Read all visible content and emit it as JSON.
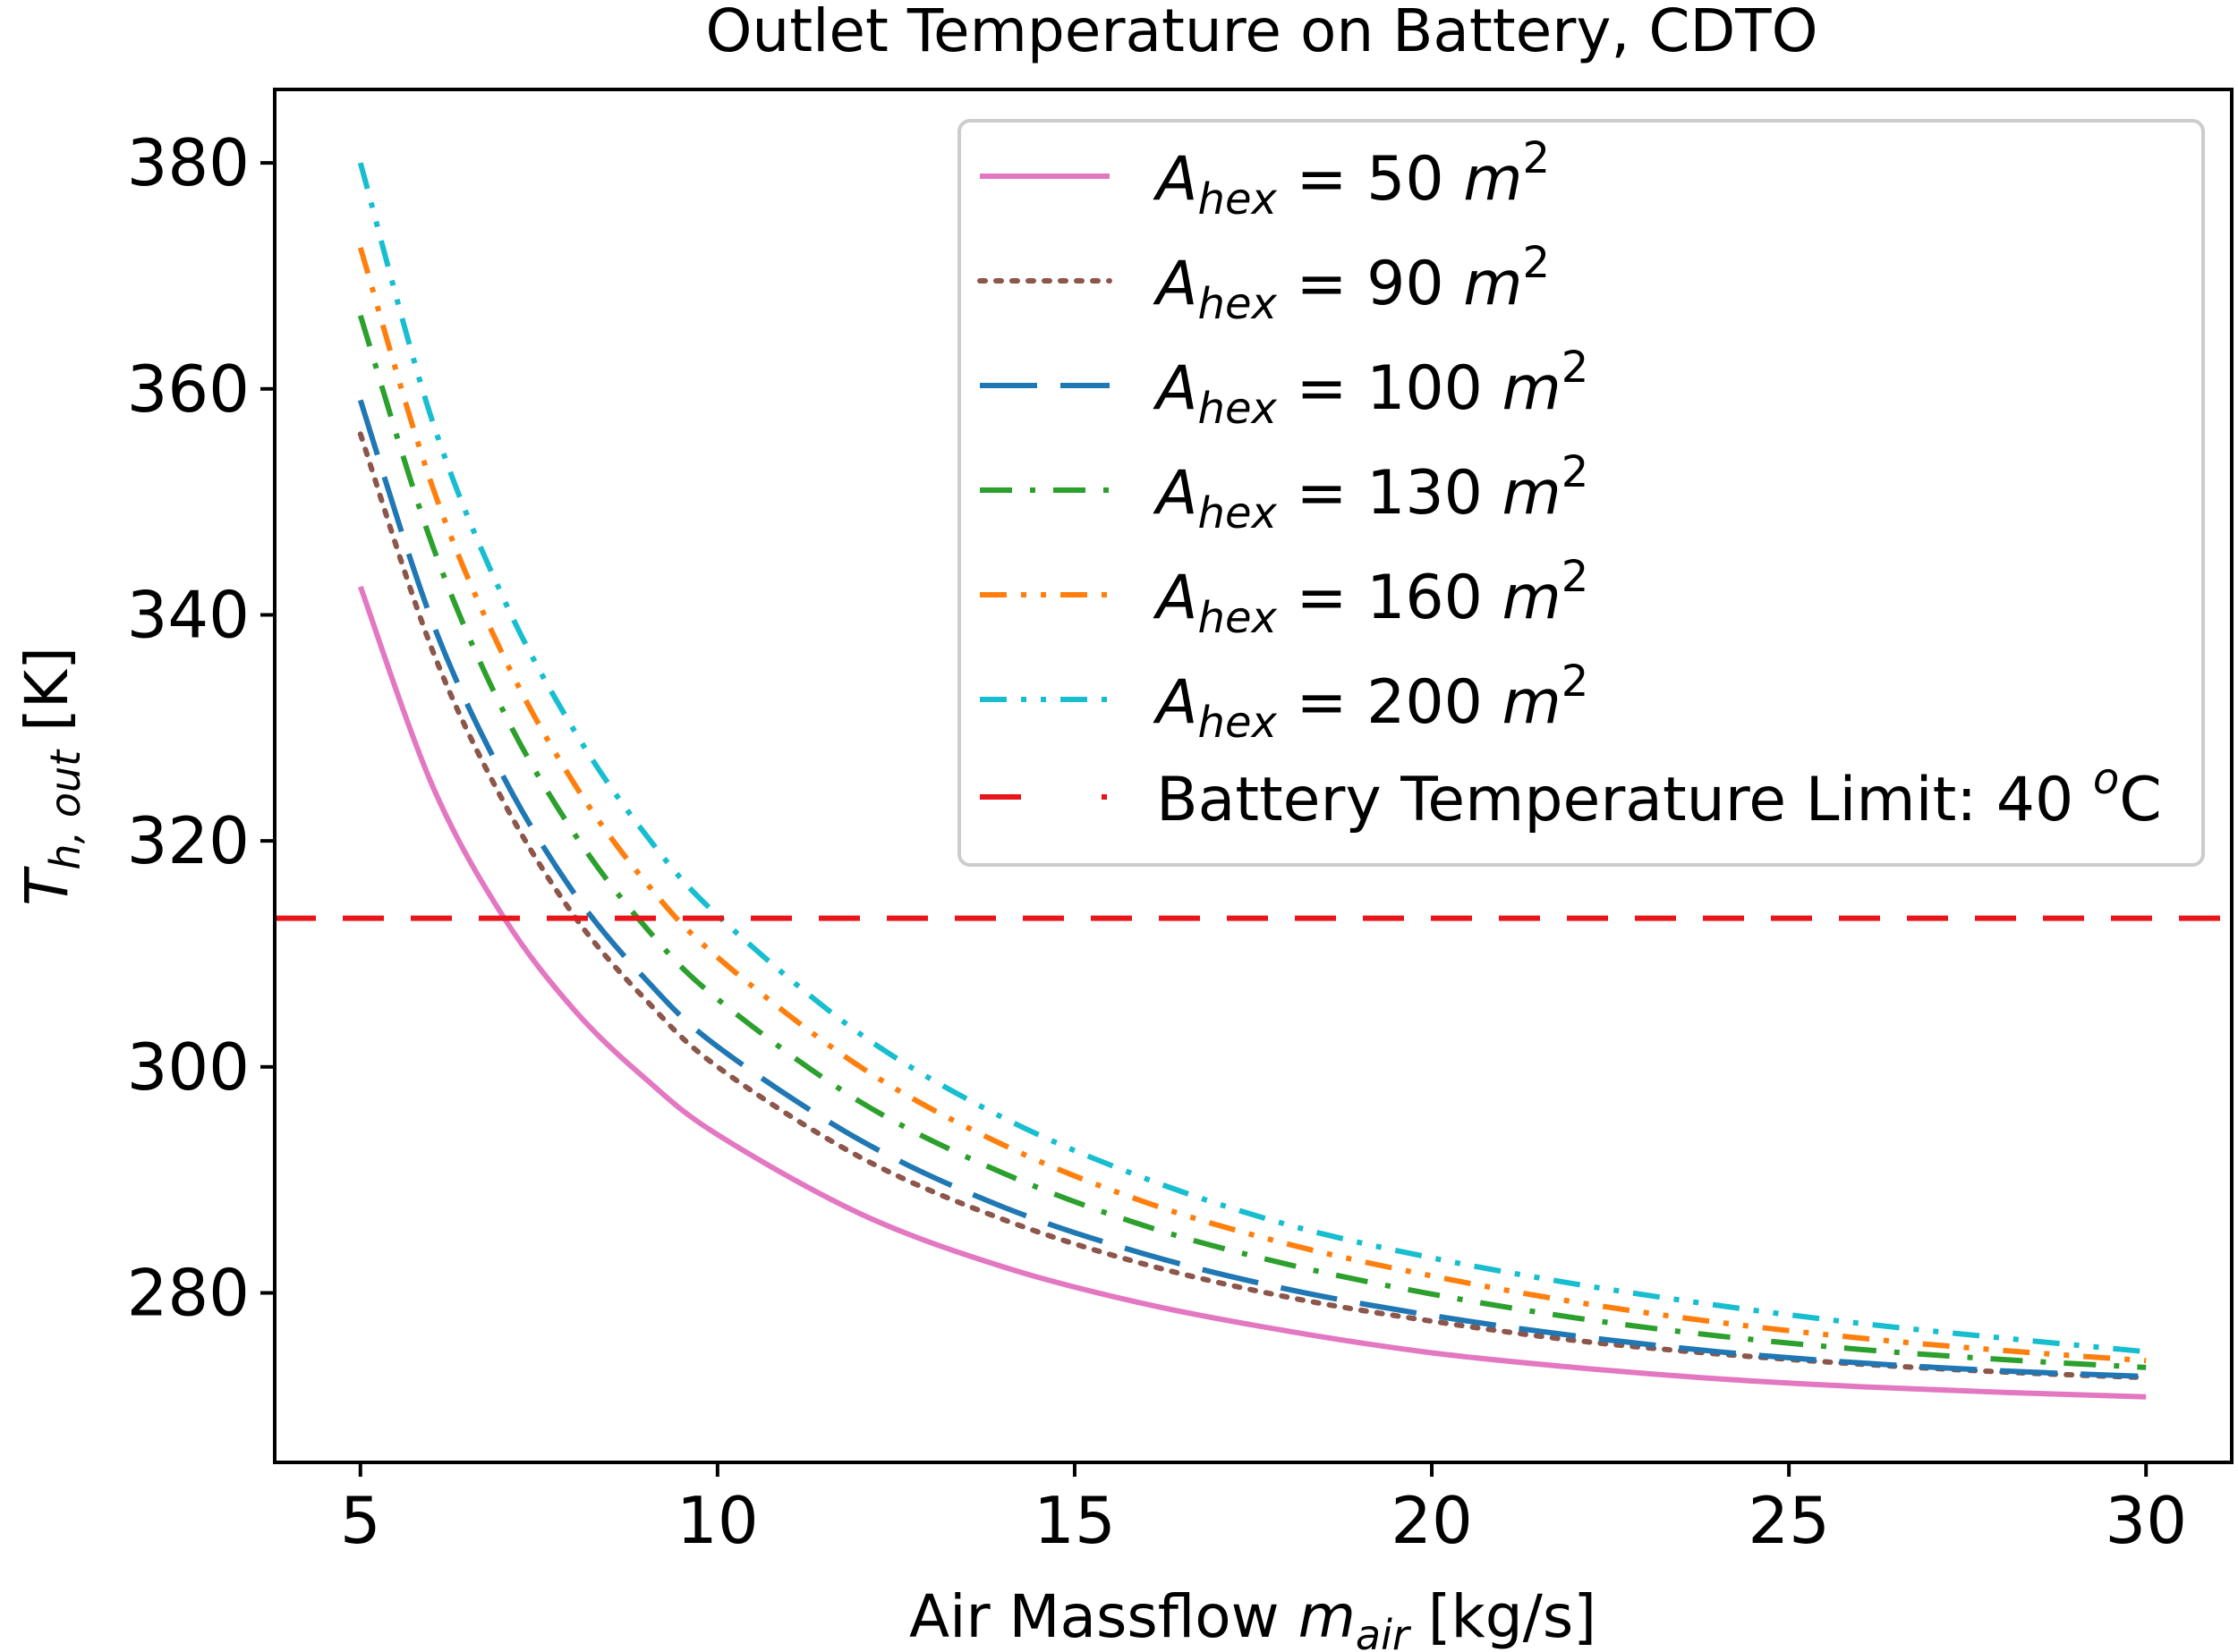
{
  "chart_data": {
    "type": "line",
    "title": "Outlet Temperature on Battery, CDTO",
    "xlabel": {
      "main": "Air Massflow ",
      "sym": "m",
      "sub": "air",
      "unit": " [kg/s]"
    },
    "ylabel": {
      "sym": "T",
      "sub": "h, out",
      "unit": " [K]"
    },
    "xlim": [
      3.8,
      31.2
    ],
    "ylim": [
      265,
      386.5
    ],
    "xticks": [
      5,
      10,
      15,
      20,
      25,
      30
    ],
    "yticks": [
      280,
      300,
      320,
      340,
      360,
      380
    ],
    "grid": false,
    "legend_position": "top-right",
    "x": [
      5,
      6,
      7,
      8,
      9,
      10,
      12,
      14,
      16,
      18,
      20,
      22,
      24,
      26,
      28,
      30
    ],
    "series": [
      {
        "name": "A_hex = 50 m^2",
        "label_sym": "A",
        "label_sub": "hex",
        "label_val": " = 50 ",
        "label_unit": "m",
        "label_sup": "2",
        "color": "#e377c2",
        "dash": "solid",
        "values": [
          342.5,
          325.0,
          313.3,
          305.0,
          298.9,
          294.0,
          287.0,
          282.3,
          279.0,
          276.6,
          274.7,
          273.4,
          272.4,
          271.7,
          271.2,
          270.8
        ]
      },
      {
        "name": "A_hex = 90 m^2",
        "label_sym": "A",
        "label_sub": "hex",
        "label_val": " = 90 ",
        "label_unit": "m",
        "label_sup": "2",
        "color": "#8c564b",
        "dash": "dotted",
        "values": [
          356.0,
          337.0,
          323.5,
          313.3,
          305.9,
          300.0,
          292.0,
          286.5,
          282.5,
          279.6,
          277.5,
          275.8,
          274.6,
          273.7,
          273.0,
          272.5
        ]
      },
      {
        "name": "A_hex = 100 m^2",
        "label_sym": "A",
        "label_sub": "hex",
        "label_val": " = 100 ",
        "label_unit": "m",
        "label_sup": "2",
        "color": "#1f77b4",
        "dash": "longdash",
        "values": [
          359.0,
          339.5,
          325.7,
          315.3,
          307.7,
          301.8,
          293.5,
          287.6,
          283.4,
          280.3,
          278.0,
          276.2,
          274.8,
          273.8,
          273.1,
          272.6
        ]
      },
      {
        "name": "A_hex = 130 m^2",
        "label_sym": "A",
        "label_sub": "hex",
        "label_val": " = 130 ",
        "label_unit": "m",
        "label_sup": "2",
        "color": "#2ca02c",
        "dash": "dashdot",
        "values": [
          366.5,
          346.3,
          331.5,
          320.6,
          312.3,
          306.0,
          296.9,
          290.6,
          285.9,
          282.5,
          279.9,
          277.8,
          276.2,
          275.0,
          274.1,
          273.4
        ]
      },
      {
        "name": "A_hex = 160 m^2",
        "label_sym": "A",
        "label_sub": "hex",
        "label_val": " = 160 ",
        "label_unit": "m",
        "label_sup": "2",
        "color": "#ff7f0e",
        "dash": "dashdotdot",
        "values": [
          372.5,
          351.5,
          336.4,
          325.0,
          316.3,
          309.7,
          300.0,
          293.1,
          288.0,
          284.3,
          281.5,
          279.2,
          277.4,
          276.0,
          274.9,
          274.0
        ]
      },
      {
        "name": "A_hex = 200 m^2",
        "label_sym": "A",
        "label_sub": "hex",
        "label_val": " = 200 ",
        "label_unit": "m",
        "label_sup": "2",
        "color": "#17becf",
        "dash": "dashdotdot",
        "values": [
          380.0,
          357.3,
          341.5,
          329.7,
          320.5,
          313.4,
          302.9,
          295.5,
          290.1,
          286.0,
          283.1,
          280.8,
          278.9,
          277.3,
          276.0,
          274.8
        ]
      }
    ],
    "reference_line": {
      "name": "Battery Temperature Limit: 40 oC",
      "label_text": "Battery Temperature Limit: 40 ",
      "label_sup": "o",
      "label_unit": "C",
      "y": 313.15,
      "color": "#e8161b",
      "dash": "dashed"
    }
  }
}
